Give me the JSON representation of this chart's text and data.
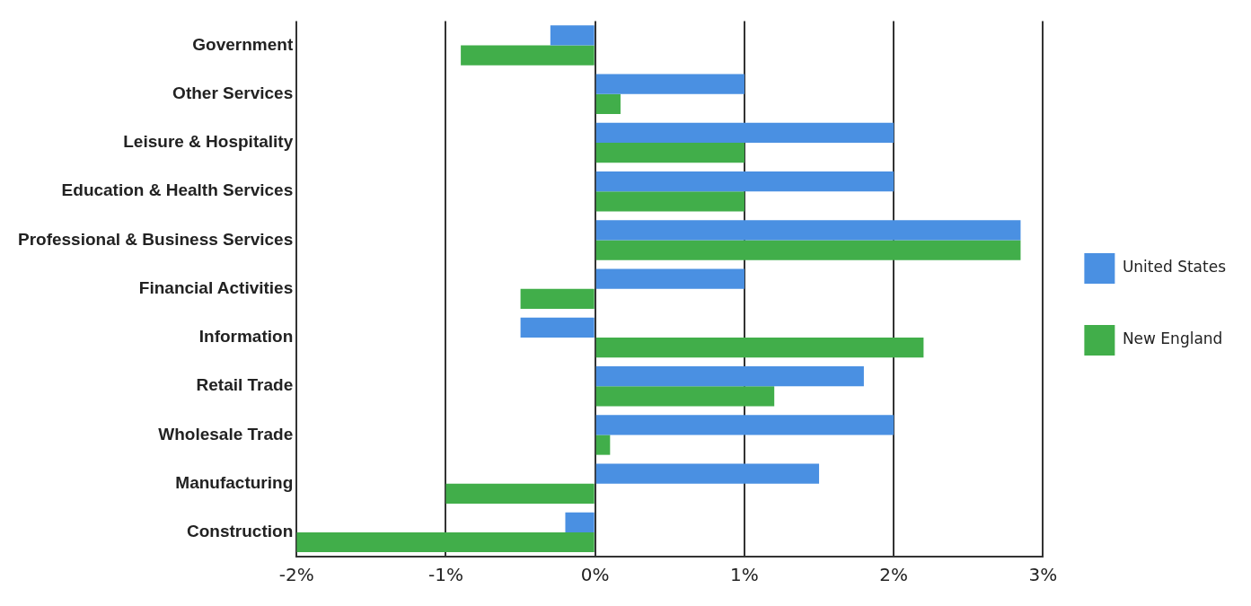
{
  "chart_data": {
    "type": "bar",
    "orientation": "horizontal",
    "categories": [
      "Government",
      "Other Services",
      "Leisure & Hospitality",
      "Education & Health Services",
      "Professional & Business Services",
      "Financial Activities",
      "Information",
      "Retail Trade",
      "Wholesale Trade",
      "Manufacturing",
      "Construction"
    ],
    "series": [
      {
        "name": "United States",
        "color": "#4a90e2",
        "values": [
          -0.3,
          1.0,
          2.0,
          2.0,
          2.85,
          1.0,
          -0.5,
          1.8,
          2.0,
          1.5,
          -0.2
        ]
      },
      {
        "name": "New England",
        "color": "#41ae4a",
        "values": [
          -0.9,
          0.17,
          1.0,
          1.0,
          2.85,
          -0.5,
          2.2,
          1.2,
          0.1,
          -1.0,
          -2.0
        ]
      }
    ],
    "xlim": [
      -2,
      3
    ],
    "xticks": [
      {
        "value": -2,
        "label": "-2%"
      },
      {
        "value": -1,
        "label": "-1%"
      },
      {
        "value": 0,
        "label": "0%"
      },
      {
        "value": 1,
        "label": "1%"
      },
      {
        "value": 2,
        "label": "2%"
      },
      {
        "value": 3,
        "label": "3%"
      }
    ],
    "grid": "x",
    "legend": "right"
  }
}
